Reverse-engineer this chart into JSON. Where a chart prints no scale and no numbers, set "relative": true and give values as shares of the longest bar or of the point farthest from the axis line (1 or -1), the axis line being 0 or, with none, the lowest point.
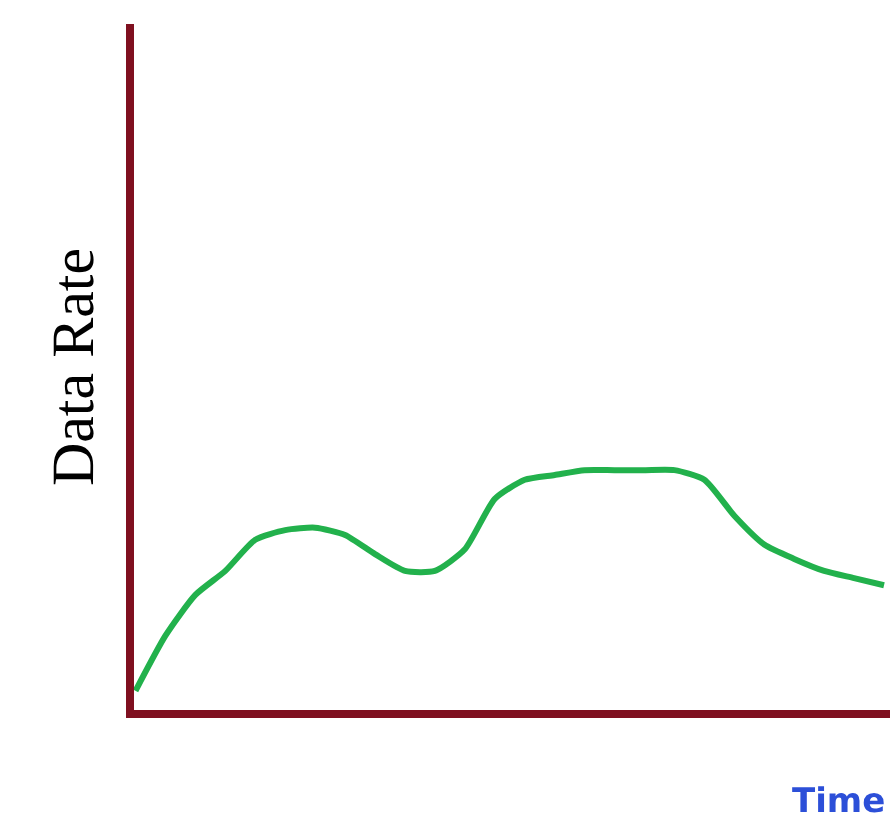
{
  "chart_data": {
    "type": "line",
    "relative": true,
    "xlabel": "Time",
    "ylabel": "Data Rate",
    "legend": false,
    "marker": "none",
    "line_style": "solid",
    "categories": [
      null,
      null,
      null,
      null,
      null,
      null,
      null,
      null,
      null,
      null,
      null,
      null,
      null,
      null,
      null,
      null,
      null,
      null,
      null,
      null,
      null,
      null,
      null,
      null,
      null,
      null
    ],
    "series": [
      {
        "color": "#22b14c",
        "values": [
          0.08,
          0.31,
          0.48,
          0.58,
          0.71,
          0.75,
          0.76,
          0.73,
          0.65,
          0.58,
          0.58,
          0.67,
          0.88,
          0.96,
          0.98,
          1,
          1,
          1,
          1,
          0.96,
          0.81,
          0.69,
          0.63,
          0.58,
          0.55,
          0.52
        ]
      }
    ]
  }
}
